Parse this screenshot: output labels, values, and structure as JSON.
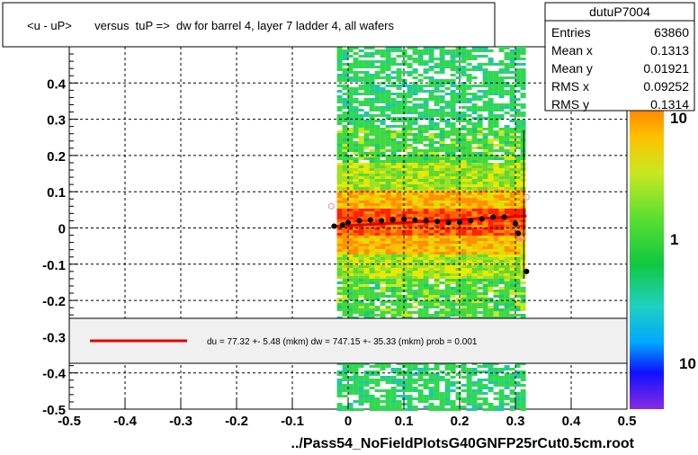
{
  "chart_data": {
    "type": "heatmap",
    "title": "<u - uP>       versus  tuP =>  dw for barrel 4, layer 7 ladder 4, all wafers",
    "xlabel": "../Pass54_NoFieldPlotsG40GNFP25rCut0.5cm.root",
    "ylabel": "",
    "xlim": [
      -0.5,
      0.5
    ],
    "ylim": [
      -0.5,
      0.5
    ],
    "x_ticks": [
      "-0.5",
      "-0.4",
      "-0.3",
      "-0.2",
      "-0.1",
      "0",
      "0.1",
      "0.2",
      "0.3",
      "0.4",
      "0.5"
    ],
    "x_tick_values": [
      -0.5,
      -0.4,
      -0.3,
      -0.2,
      -0.1,
      0,
      0.1,
      0.2,
      0.3,
      0.4,
      0.5
    ],
    "y_ticks": [
      "-0.5",
      "-0.4",
      "-0.3",
      "-0.2",
      "-0.1",
      "0",
      "0.1",
      "0.2",
      "0.3",
      "0.4"
    ],
    "y_tick_values": [
      -0.5,
      -0.4,
      -0.3,
      -0.2,
      -0.1,
      0,
      0.1,
      0.2,
      0.3,
      0.4
    ],
    "grid": true,
    "density_region": {
      "x_range": [
        -0.02,
        0.31
      ],
      "y_range": [
        -0.5,
        0.5
      ]
    },
    "colorbar": {
      "labels": [
        "10",
        "1",
        "10"
      ],
      "scale": "log"
    },
    "profile_points": {
      "x": [
        -0.025,
        -0.01,
        0.0,
        0.02,
        0.04,
        0.06,
        0.08,
        0.1,
        0.12,
        0.14,
        0.16,
        0.18,
        0.2,
        0.22,
        0.24,
        0.26,
        0.28,
        0.3,
        0.305,
        0.32
      ],
      "y": [
        0.005,
        0.008,
        0.015,
        0.02,
        0.022,
        0.02,
        0.023,
        0.024,
        0.022,
        0.02,
        0.018,
        0.015,
        0.016,
        0.02,
        0.025,
        0.03,
        0.03,
        0.012,
        -0.015,
        -0.12
      ]
    },
    "outlier_points": {
      "x": [
        -0.03,
        0.31,
        0.32
      ],
      "y": [
        0.06,
        -0.03,
        0.085
      ]
    },
    "fit_line": {
      "x": [
        -0.03,
        0.32
      ],
      "y": [
        0.004,
        0.033
      ]
    },
    "stats_box": {
      "title": "dutuP7004",
      "rows": [
        {
          "label": "Entries",
          "value": "63860"
        },
        {
          "label": "Mean x",
          "value": "0.1313"
        },
        {
          "label": "Mean y",
          "value": "0.01921"
        },
        {
          "label": "RMS x",
          "value": "0.09252"
        },
        {
          "label": "RMS y",
          "value": "0.1314"
        }
      ]
    },
    "fit_legend": "du =   77.32 +-  5.48 (mkm) dw =  747.15 +- 35.33 (mkm) prob = 0.001",
    "colors": {
      "fit_line": "#e00000",
      "points": "#000000",
      "outliers": "#e89ac8"
    }
  }
}
